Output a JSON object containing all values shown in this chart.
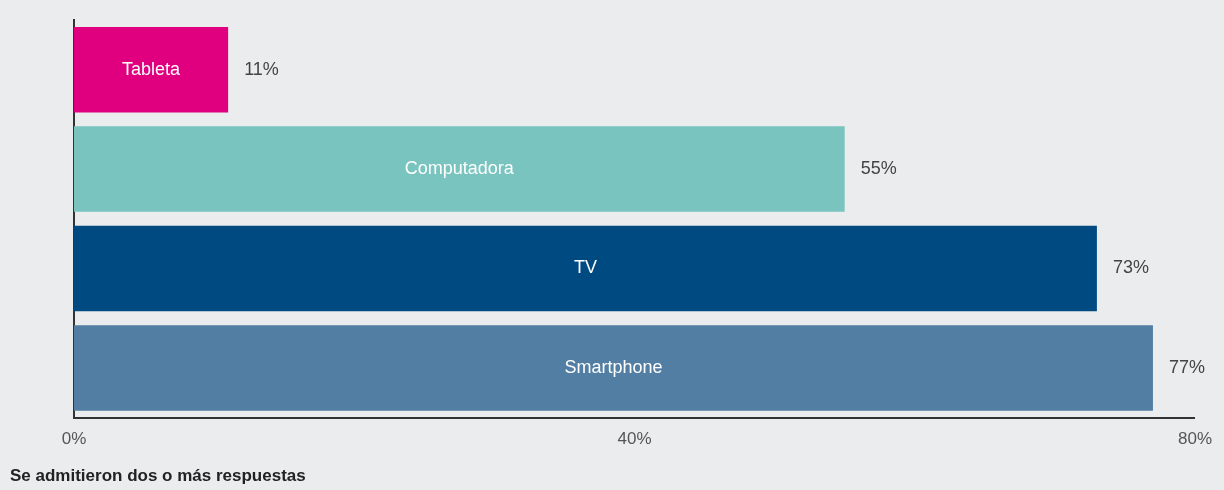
{
  "chart_data": {
    "type": "bar",
    "orientation": "horizontal",
    "categories": [
      "Tableta",
      "Computadora",
      "TV",
      "Smartphone"
    ],
    "values": [
      11,
      55,
      73,
      77
    ],
    "colors": [
      "#e0007f",
      "#7ac4bf",
      "#004a82",
      "#527ea3"
    ],
    "value_labels": [
      "11%",
      "55%",
      "73%",
      "77%"
    ],
    "xlim": [
      0,
      80
    ],
    "xticks": [
      {
        "value": 0,
        "label": "0%"
      },
      {
        "value": 40,
        "label": "40%"
      },
      {
        "value": 80,
        "label": "80%"
      }
    ],
    "grid": false,
    "legend": false,
    "annotations": [
      "Se admitieron dos o más respuestas"
    ]
  }
}
